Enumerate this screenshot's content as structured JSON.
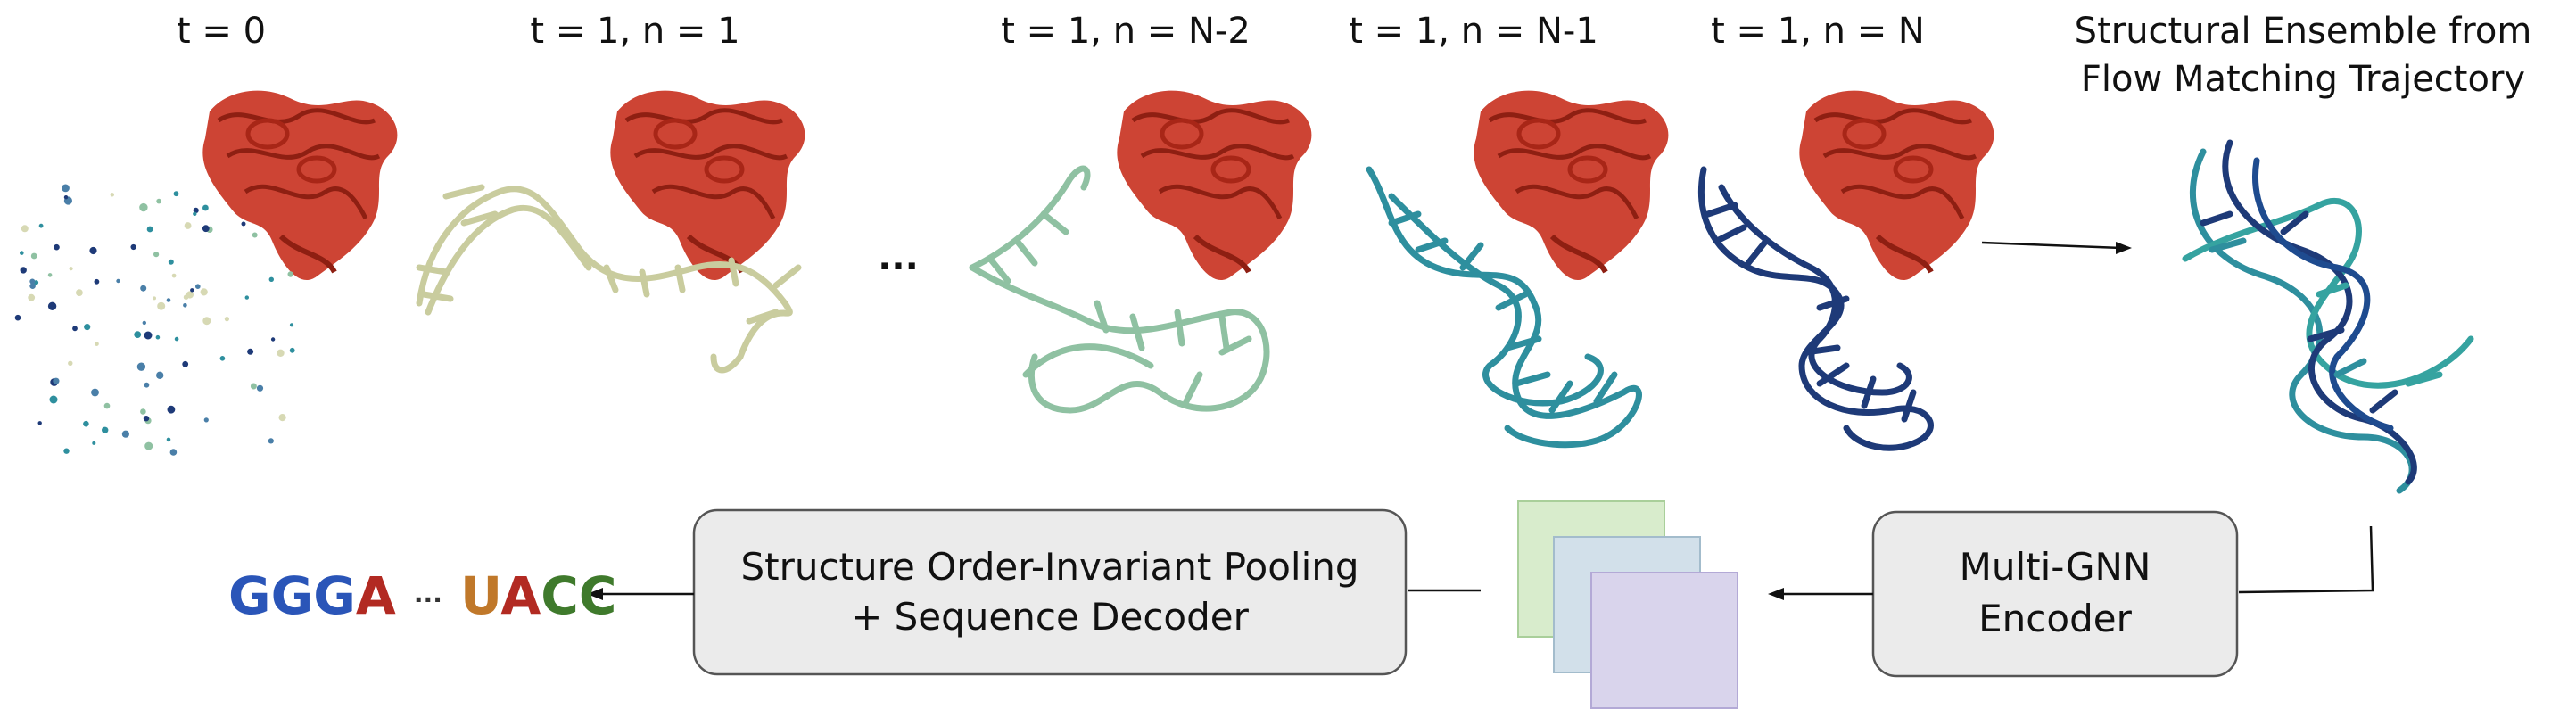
{
  "frame_labels": [
    "t = 0",
    "t = 1, n = 1",
    "t = 1, n = N-2",
    "t = 1, n = N-1",
    "t = 1, n = N"
  ],
  "ellipsis": "...",
  "ensemble_title": [
    "Structural Ensemble from",
    "Flow Matching Trajectory"
  ],
  "encoder_box": [
    "Multi-GNN",
    "Encoder"
  ],
  "decoder_box": [
    "Structure Order-Invariant Pooling",
    "+ Sequence Decoder"
  ],
  "output_sequence": {
    "left": "GGGA",
    "middle": "···",
    "right": "UACC",
    "colors": {
      "G": "#2a55b8",
      "A": "#b22a22",
      "U": "#c0782a",
      "C": "#3f7a2c"
    }
  },
  "colors": {
    "protein": "#c8301e",
    "rna_n1": "#d7d9b4",
    "rna_nm2": "#8fc1a2",
    "rna_nm1": "#2e8f9e",
    "rna_n": "#1e3a78",
    "box_fill": "#ebebeb",
    "embed_green": "#d8eccc",
    "embed_blue": "#d2e0ea",
    "embed_purple": "#d9d4ec"
  }
}
